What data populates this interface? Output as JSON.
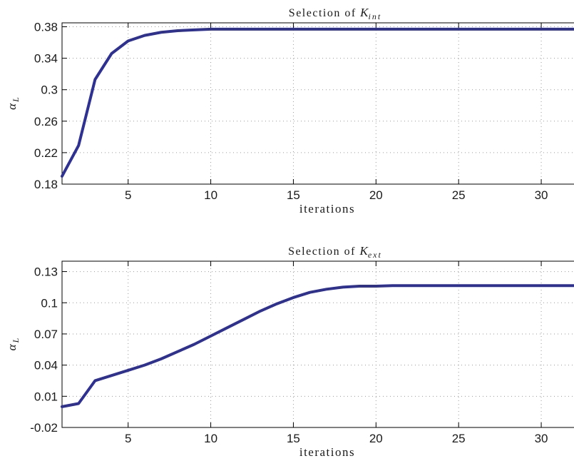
{
  "colors": {
    "series": "#2e3192"
  },
  "chart_data": [
    {
      "type": "line",
      "title_prefix": "Selection of",
      "title_symbol": "K",
      "title_subscript": "int",
      "xlabel": "iterations",
      "ylabel_symbol": "α",
      "ylabel_subscript": "L",
      "xlim": [
        1,
        32.5
      ],
      "ylim": [
        0.18,
        0.385
      ],
      "xticks": [
        5,
        10,
        15,
        20,
        25,
        30
      ],
      "yticks": [
        0.18,
        0.22,
        0.26,
        0.3,
        0.34,
        0.38
      ],
      "ytick_labels": [
        "0.18",
        "0.22",
        "0.26",
        "0.3",
        "0.34",
        "0.38"
      ],
      "grid": true,
      "series": [
        {
          "x": [
            1,
            2,
            3,
            4,
            5,
            6,
            7,
            8,
            9,
            10,
            11,
            12,
            13,
            14,
            15,
            16,
            17,
            18,
            19,
            20,
            21,
            22,
            23,
            24,
            25,
            26,
            27,
            28,
            29,
            30,
            31,
            32,
            33
          ],
          "y": [
            0.19,
            0.229,
            0.313,
            0.346,
            0.362,
            0.369,
            0.373,
            0.375,
            0.376,
            0.377,
            0.377,
            0.377,
            0.377,
            0.377,
            0.377,
            0.377,
            0.377,
            0.377,
            0.377,
            0.377,
            0.377,
            0.377,
            0.377,
            0.377,
            0.377,
            0.377,
            0.377,
            0.377,
            0.377,
            0.377,
            0.377,
            0.377,
            0.377
          ]
        }
      ]
    },
    {
      "type": "line",
      "title_prefix": "Selection of",
      "title_symbol": "K",
      "title_subscript": "ext",
      "xlabel": "iterations",
      "ylabel_symbol": "α",
      "ylabel_subscript": "L",
      "xlim": [
        1,
        32.5
      ],
      "ylim": [
        -0.02,
        0.14
      ],
      "xticks": [
        5,
        10,
        15,
        20,
        25,
        30
      ],
      "yticks": [
        -0.02,
        0.01,
        0.04,
        0.07,
        0.1,
        0.13
      ],
      "ytick_labels": [
        "-0.02",
        "0.01",
        "0.04",
        "0.07",
        "0.1",
        "0.13"
      ],
      "grid": true,
      "series": [
        {
          "x": [
            1,
            2,
            3,
            4,
            5,
            6,
            7,
            8,
            9,
            10,
            11,
            12,
            13,
            14,
            15,
            16,
            17,
            18,
            19,
            20,
            21,
            22,
            23,
            24,
            25,
            26,
            27,
            28,
            29,
            30,
            31,
            32,
            33
          ],
          "y": [
            0.0,
            0.003,
            0.025,
            0.03,
            0.035,
            0.04,
            0.046,
            0.053,
            0.06,
            0.068,
            0.076,
            0.084,
            0.092,
            0.099,
            0.105,
            0.11,
            0.113,
            0.115,
            0.116,
            0.116,
            0.1165,
            0.1165,
            0.1165,
            0.1165,
            0.1165,
            0.1165,
            0.1165,
            0.1165,
            0.1165,
            0.1165,
            0.1165,
            0.1165,
            0.1165
          ]
        }
      ]
    }
  ]
}
